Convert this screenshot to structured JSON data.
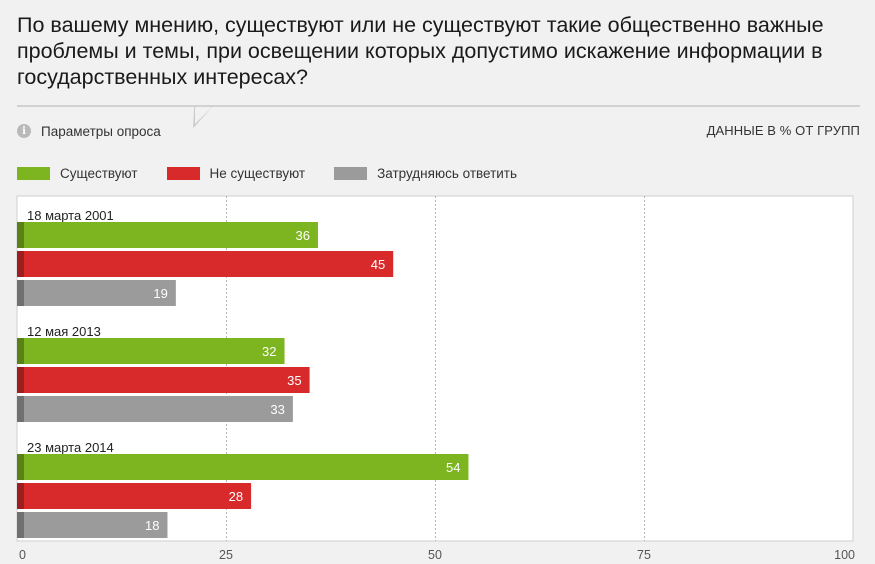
{
  "title": "По вашему мнению, существуют или не существуют такие общественно важные проблемы и темы, при освещении которых допустимо искажение информации в государственных интересах?",
  "params_label": "Параметры опроса",
  "units_label": "ДАННЫЕ В % ОТ ГРУПП",
  "colors": {
    "green": "#7cb51f",
    "red": "#d82a2b",
    "gray": "#9b9b9b"
  },
  "chart_data": {
    "type": "bar",
    "orientation": "horizontal",
    "categories": [
      "18 марта 2001",
      "12 мая 2013",
      "23 марта 2014"
    ],
    "series": [
      {
        "name": "Существуют",
        "color": "#7cb51f",
        "values": [
          36,
          32,
          54
        ]
      },
      {
        "name": "Не существуют",
        "color": "#d82a2b",
        "values": [
          45,
          35,
          28
        ]
      },
      {
        "name": "Затрудняюсь ответить",
        "color": "#9b9b9b",
        "values": [
          19,
          33,
          18
        ]
      }
    ],
    "xlim": [
      0,
      100
    ],
    "xticks": [
      0,
      25,
      50,
      75,
      100
    ],
    "grid": true,
    "legend": "top-left"
  }
}
